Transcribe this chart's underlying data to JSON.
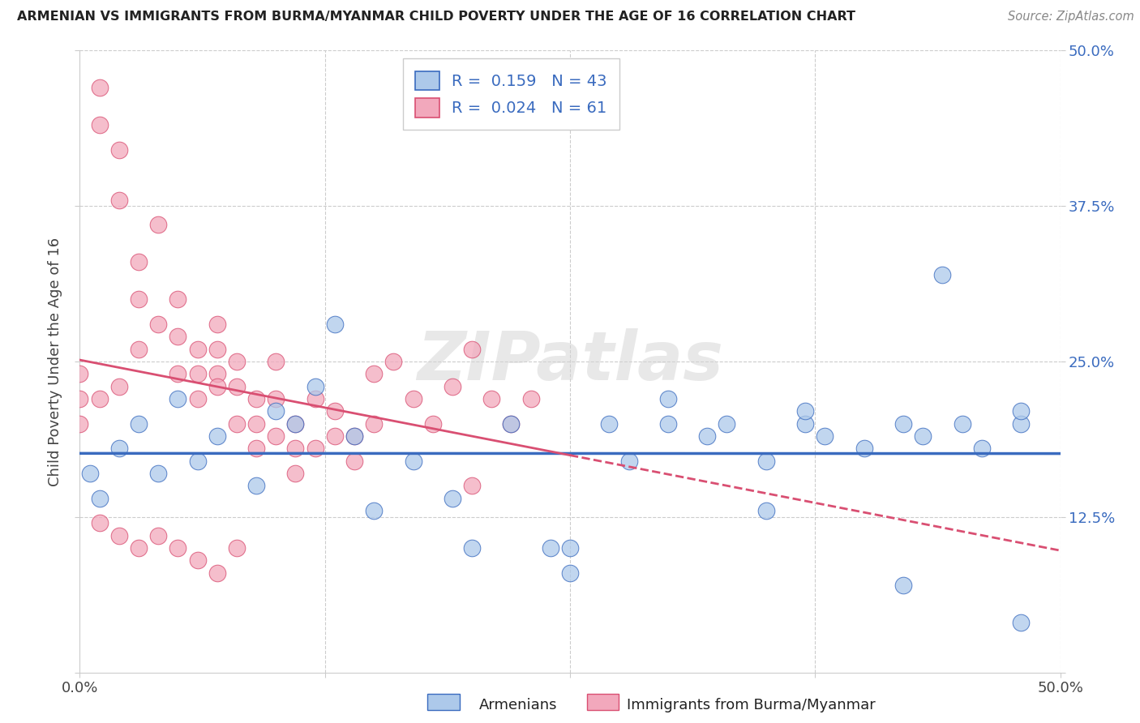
{
  "title": "ARMENIAN VS IMMIGRANTS FROM BURMA/MYANMAR CHILD POVERTY UNDER THE AGE OF 16 CORRELATION CHART",
  "source": "Source: ZipAtlas.com",
  "ylabel": "Child Poverty Under the Age of 16",
  "xlim": [
    0.0,
    0.5
  ],
  "ylim": [
    0.0,
    0.5
  ],
  "armenian_R": 0.159,
  "armenian_N": 43,
  "burma_R": 0.024,
  "burma_N": 61,
  "armenian_color": "#adc9ea",
  "burma_color": "#f2a8bc",
  "armenian_line_color": "#3a6bbf",
  "burma_line_color": "#d94f72",
  "watermark_text": "ZIPatlas",
  "armenian_x": [
    0.005,
    0.01,
    0.02,
    0.03,
    0.04,
    0.05,
    0.06,
    0.07,
    0.09,
    0.1,
    0.11,
    0.12,
    0.13,
    0.14,
    0.15,
    0.17,
    0.19,
    0.2,
    0.22,
    0.24,
    0.25,
    0.27,
    0.3,
    0.3,
    0.32,
    0.33,
    0.35,
    0.37,
    0.38,
    0.4,
    0.42,
    0.43,
    0.44,
    0.46,
    0.48,
    0.48,
    0.25,
    0.28,
    0.35,
    0.37,
    0.42,
    0.45,
    0.48
  ],
  "armenian_y": [
    0.16,
    0.14,
    0.18,
    0.2,
    0.16,
    0.22,
    0.17,
    0.19,
    0.15,
    0.21,
    0.2,
    0.23,
    0.28,
    0.19,
    0.13,
    0.17,
    0.14,
    0.1,
    0.2,
    0.1,
    0.08,
    0.2,
    0.22,
    0.2,
    0.19,
    0.2,
    0.17,
    0.2,
    0.19,
    0.18,
    0.2,
    0.19,
    0.32,
    0.18,
    0.2,
    0.04,
    0.1,
    0.17,
    0.13,
    0.21,
    0.07,
    0.2,
    0.21
  ],
  "burma_x": [
    0.0,
    0.0,
    0.0,
    0.01,
    0.01,
    0.01,
    0.02,
    0.02,
    0.02,
    0.03,
    0.03,
    0.03,
    0.04,
    0.04,
    0.05,
    0.05,
    0.05,
    0.06,
    0.06,
    0.06,
    0.07,
    0.07,
    0.07,
    0.07,
    0.08,
    0.08,
    0.08,
    0.09,
    0.09,
    0.09,
    0.1,
    0.1,
    0.1,
    0.11,
    0.11,
    0.11,
    0.12,
    0.12,
    0.13,
    0.13,
    0.14,
    0.14,
    0.15,
    0.15,
    0.16,
    0.17,
    0.18,
    0.19,
    0.2,
    0.21,
    0.22,
    0.23,
    0.01,
    0.02,
    0.03,
    0.04,
    0.05,
    0.06,
    0.07,
    0.08,
    0.2
  ],
  "burma_y": [
    0.24,
    0.22,
    0.2,
    0.47,
    0.44,
    0.22,
    0.42,
    0.38,
    0.23,
    0.33,
    0.3,
    0.26,
    0.36,
    0.28,
    0.3,
    0.27,
    0.24,
    0.26,
    0.24,
    0.22,
    0.28,
    0.26,
    0.24,
    0.23,
    0.25,
    0.23,
    0.2,
    0.22,
    0.2,
    0.18,
    0.25,
    0.22,
    0.19,
    0.2,
    0.18,
    0.16,
    0.22,
    0.18,
    0.21,
    0.19,
    0.19,
    0.17,
    0.24,
    0.2,
    0.25,
    0.22,
    0.2,
    0.23,
    0.26,
    0.22,
    0.2,
    0.22,
    0.12,
    0.11,
    0.1,
    0.11,
    0.1,
    0.09,
    0.08,
    0.1,
    0.15
  ]
}
